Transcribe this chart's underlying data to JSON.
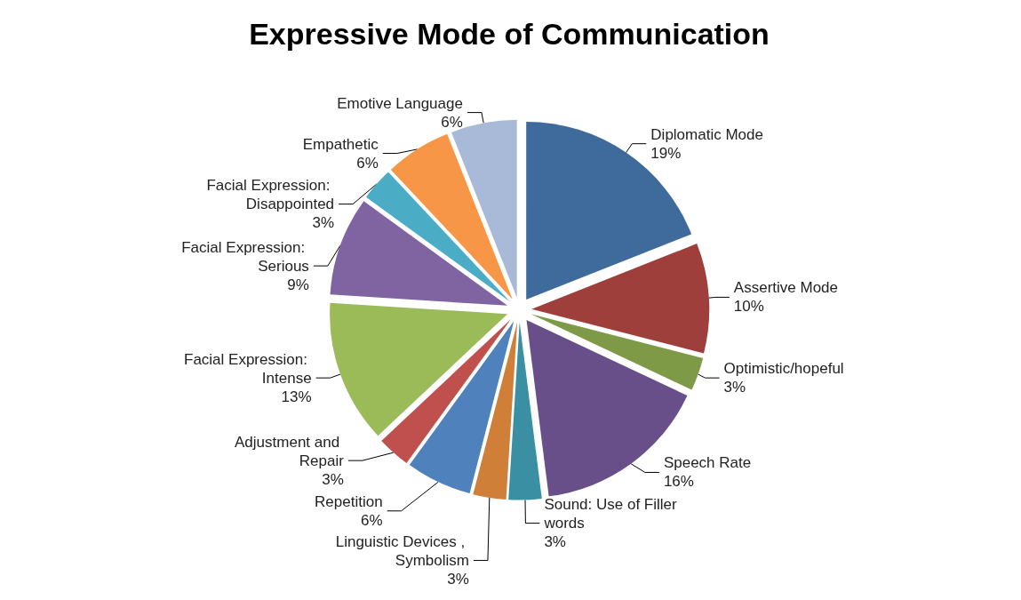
{
  "chart_data": {
    "type": "pie",
    "title": "Expressive Mode of Communication",
    "categories": [
      "Diplomatic Mode",
      "Assertive Mode",
      "Optimistic/hopeful",
      "Speech Rate",
      "Sound: Use of Filler words",
      "Linguistic Devices , Symbolism",
      "Repetition",
      "Adjustment and Repair",
      "Facial Expression: Intense",
      "Facial Expression: Serious",
      "Facial Expression: Disappointed",
      "Empathetic",
      "Emotive Language"
    ],
    "values": [
      19,
      10,
      3,
      16,
      3,
      3,
      6,
      3,
      13,
      9,
      3,
      6,
      6
    ],
    "value_labels": [
      "19%",
      "10%",
      "3%",
      "16%",
      "3%",
      "3%",
      "6%",
      "3%",
      "13%",
      "9%",
      "3%",
      "6%",
      "6%"
    ],
    "colors": [
      "#3f6b9c",
      "#9e3f3c",
      "#7e9a47",
      "#684f8a",
      "#3a8fa3",
      "#d07f39",
      "#4f81bd",
      "#c0504d",
      "#9bbb59",
      "#8064a2",
      "#4bacc6",
      "#f79646",
      "#a9b9d8"
    ],
    "legend": false
  }
}
